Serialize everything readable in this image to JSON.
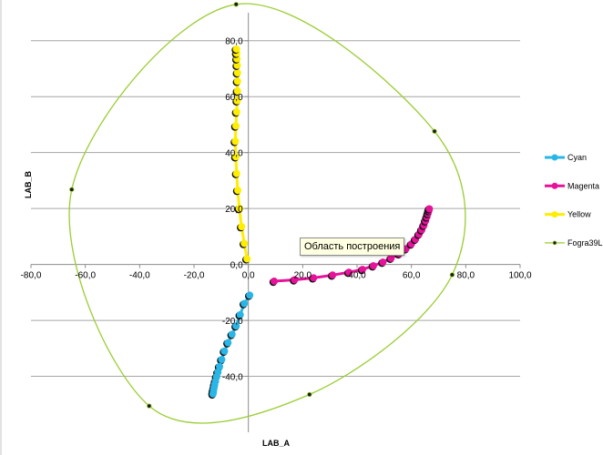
{
  "chart_data": {
    "type": "scatter",
    "title": "",
    "xlabel": "LAB_A",
    "ylabel": "LAB_B",
    "xlim": [
      -80,
      100
    ],
    "ylim": [
      -60,
      90
    ],
    "x_ticks": [
      -80,
      -60,
      -40,
      -20,
      0,
      20,
      40,
      60,
      80,
      100
    ],
    "y_ticks": [
      -40,
      -20,
      0,
      20,
      40,
      60,
      80
    ],
    "x_tick_labels": [
      "-80,0",
      "-60,0",
      "-40,0",
      "-20,0",
      "0,0",
      "20,0",
      "40,0",
      "60,0",
      "80,0",
      "100,0"
    ],
    "y_tick_labels": [
      "-40,0",
      "-20,0",
      "0,0",
      "20,0",
      "40,0",
      "60,0",
      "80,0"
    ],
    "grid": true,
    "legend_position": "right",
    "series": [
      {
        "name": "Cyan",
        "color": "#29b6e6",
        "marker": "circle",
        "points": [
          [
            0.5,
            -11
          ],
          [
            -1.5,
            -14
          ],
          [
            -3,
            -18
          ],
          [
            -4.5,
            -22
          ],
          [
            -6,
            -25
          ],
          [
            -7.5,
            -28
          ],
          [
            -8.8,
            -31
          ],
          [
            -9.8,
            -34
          ],
          [
            -10.6,
            -36.5
          ],
          [
            -11.2,
            -38.5
          ],
          [
            -11.7,
            -40.2
          ],
          [
            -12.1,
            -41.8
          ],
          [
            -12.4,
            -43
          ],
          [
            -12.6,
            -44
          ],
          [
            -12.8,
            -44.8
          ],
          [
            -12.9,
            -45.4
          ],
          [
            -13,
            -45.9
          ],
          [
            -13,
            -46.3
          ]
        ]
      },
      {
        "name": "Magenta",
        "color": "#e6129a",
        "marker": "circle",
        "points": [
          [
            9.5,
            -6
          ],
          [
            17,
            -5.5
          ],
          [
            24,
            -4.8
          ],
          [
            31,
            -3.8
          ],
          [
            37,
            -2.8
          ],
          [
            42,
            -1.8
          ],
          [
            46,
            -0.5
          ],
          [
            49.5,
            0.8
          ],
          [
            52.5,
            2.2
          ],
          [
            55.5,
            3.8
          ],
          [
            58,
            5.6
          ],
          [
            60,
            7.3
          ],
          [
            61.5,
            9
          ],
          [
            62.8,
            10.8
          ],
          [
            63.8,
            12.4
          ],
          [
            64.6,
            14
          ],
          [
            65.2,
            15.6
          ],
          [
            65.7,
            17
          ],
          [
            66.1,
            18.2
          ],
          [
            66.4,
            19.2
          ],
          [
            66.6,
            19.9
          ]
        ]
      },
      {
        "name": "Yellow",
        "color": "#ffee00",
        "marker": "circle",
        "points": [
          [
            -0.5,
            2
          ],
          [
            -1.5,
            7.5
          ],
          [
            -2.5,
            13.5
          ],
          [
            -3.3,
            20
          ],
          [
            -3.9,
            26.5
          ],
          [
            -4.3,
            32.5
          ],
          [
            -4.6,
            38.5
          ],
          [
            -4.8,
            44
          ],
          [
            -4.6,
            49.5
          ],
          [
            -4.3,
            54.5
          ],
          [
            -4.1,
            58.5
          ],
          [
            -4,
            62
          ],
          [
            -4,
            65.5
          ],
          [
            -4,
            68.5
          ],
          [
            -4.1,
            71.2
          ],
          [
            -4.2,
            73.5
          ],
          [
            -4.3,
            75.5
          ],
          [
            -4.4,
            77
          ]
        ]
      },
      {
        "name": "Fogra39L",
        "color": "#9acd32",
        "marker": "dot",
        "points": [
          [
            -4.5,
            93
          ],
          [
            68.5,
            47.6
          ],
          [
            75,
            -3.7
          ],
          [
            22.5,
            -46.5
          ],
          [
            -36.5,
            -50.6
          ],
          [
            -65,
            26.8
          ]
        ]
      }
    ]
  },
  "tooltip_text": "Область построения"
}
